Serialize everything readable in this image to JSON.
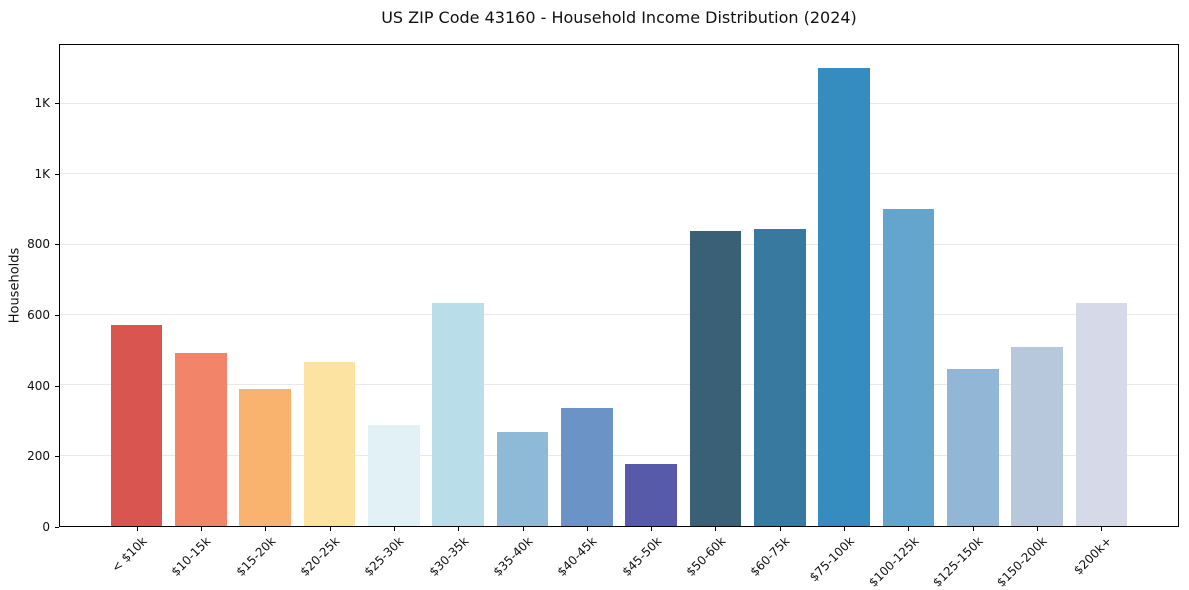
{
  "title": "US ZIP Code 43160 - Household Income Distribution (2024)",
  "chart_data": {
    "type": "bar",
    "title": "US ZIP Code 43160 - Household Income Distribution (2024)",
    "xlabel": "",
    "ylabel": "Households",
    "categories": [
      "< $10k",
      "$10-15k",
      "$15-20k",
      "$20-25k",
      "$25-30k",
      "$30-35k",
      "$35-40k",
      "$40-45k",
      "$45-50k",
      "$50-60k",
      "$60-75k",
      "$75-100k",
      "$100-125k",
      "$125-150k",
      "$150-200k",
      "$200k+"
    ],
    "values": [
      570,
      492,
      390,
      466,
      287,
      635,
      268,
      334,
      176,
      839,
      845,
      1302,
      901,
      447,
      510,
      635
    ],
    "bar_colors": [
      "#d8564f",
      "#f28569",
      "#fab36e",
      "#fce3a2",
      "#e2f1f6",
      "#badee9",
      "#8fbad7",
      "#6b93c5",
      "#575aa8",
      "#3a6075",
      "#387a9f",
      "#348cbf",
      "#64a5cd",
      "#92b6d5",
      "#b7c8dd",
      "#d6d9e7"
    ],
    "ylim": [
      0,
      1367
    ],
    "yticks": [
      {
        "value": 0,
        "label": "0"
      },
      {
        "value": 200,
        "label": "200"
      },
      {
        "value": 400,
        "label": "400"
      },
      {
        "value": 600,
        "label": "600"
      },
      {
        "value": 800,
        "label": "800"
      },
      {
        "value": 1000,
        "label": "1K"
      },
      {
        "value": 1200,
        "label": "1K"
      }
    ],
    "grid": "horizontal",
    "legend": "none",
    "grid_color": "#e9e9ec",
    "axis_color": "#000000",
    "background_color": "#ffffff"
  }
}
